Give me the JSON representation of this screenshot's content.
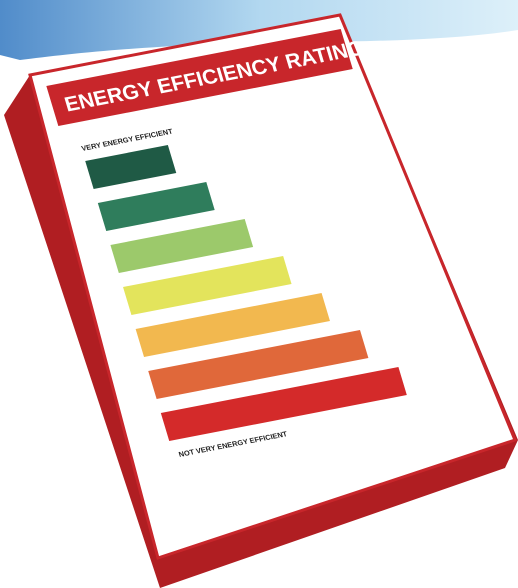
{
  "label": {
    "title": "ENERGY EFFICIENCY RATING",
    "top_label": "VERY ENERGY EFFICIENT",
    "bottom_label": "NOT VERY ENERGY EFFICIENT"
  }
}
